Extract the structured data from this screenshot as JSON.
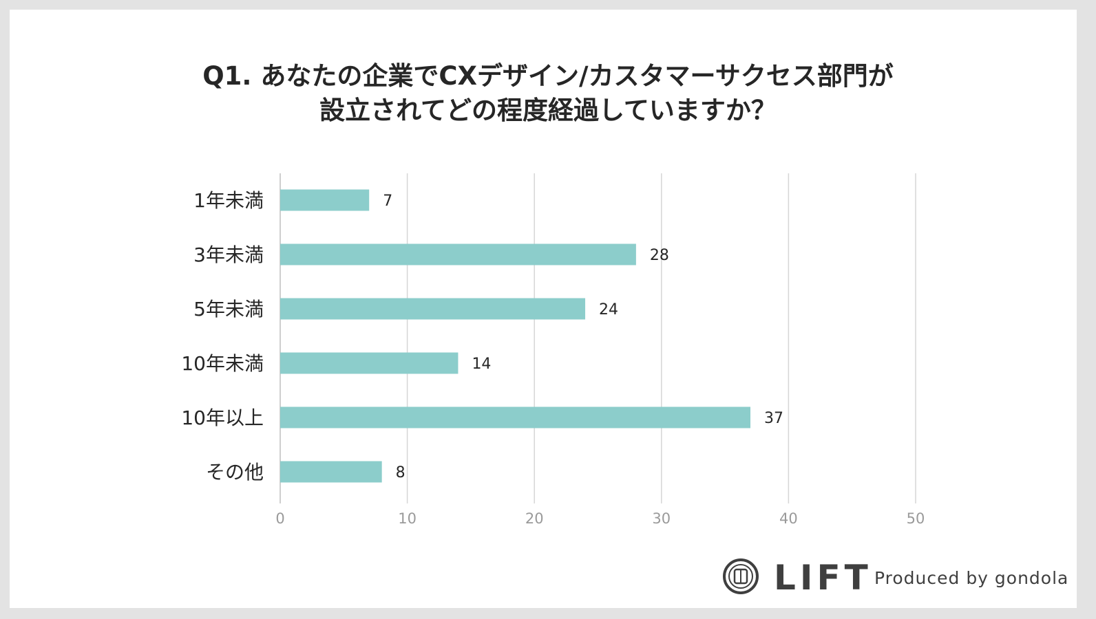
{
  "title": {
    "line1": "Q1. あなたの企業でCXデザイン/カスタマーサクセス部門が",
    "line2": "設立されてどの程度経過していますか？"
  },
  "chart_data": {
    "type": "bar",
    "orientation": "horizontal",
    "categories": [
      "1年未満",
      "3年未満",
      "5年未満",
      "10年未満",
      "10年以上",
      "その他"
    ],
    "values": [
      7,
      28,
      24,
      14,
      37,
      8
    ],
    "xlim": [
      0,
      50
    ],
    "xticks": [
      0,
      10,
      20,
      30,
      40,
      50
    ],
    "xlabel": "",
    "ylabel": "",
    "grid": true,
    "bar_color": "#8ccdcb"
  },
  "brand": {
    "logo": "LIFT",
    "tagline": "Produced by gondola",
    "icon": "lift-logo-icon"
  }
}
